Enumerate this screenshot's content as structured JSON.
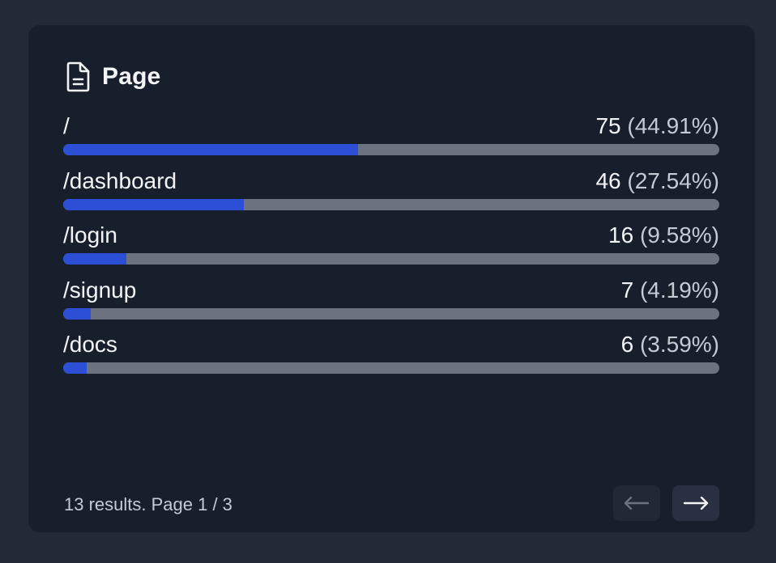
{
  "card": {
    "title": "Page",
    "icon": "document-icon"
  },
  "rows": [
    {
      "label": "/",
      "count": "75",
      "percent": "(44.91%)",
      "fraction": 0.4491
    },
    {
      "label": "/dashboard",
      "count": "46",
      "percent": "(27.54%)",
      "fraction": 0.2754
    },
    {
      "label": "/login",
      "count": "16",
      "percent": "(9.58%)",
      "fraction": 0.0958
    },
    {
      "label": "/signup",
      "count": "7",
      "percent": "(4.19%)",
      "fraction": 0.0419
    },
    {
      "label": "/docs",
      "count": "6",
      "percent": "(3.59%)",
      "fraction": 0.0359
    }
  ],
  "footer": {
    "summary": "13 results. Page 1 / 3",
    "prev_icon": "arrow-left-icon",
    "next_icon": "arrow-right-icon"
  },
  "colors": {
    "bar_fill": "#2d4fd6",
    "bar_track": "#6b7280",
    "card_bg": "#171e2c",
    "page_bg": "#222a38"
  }
}
